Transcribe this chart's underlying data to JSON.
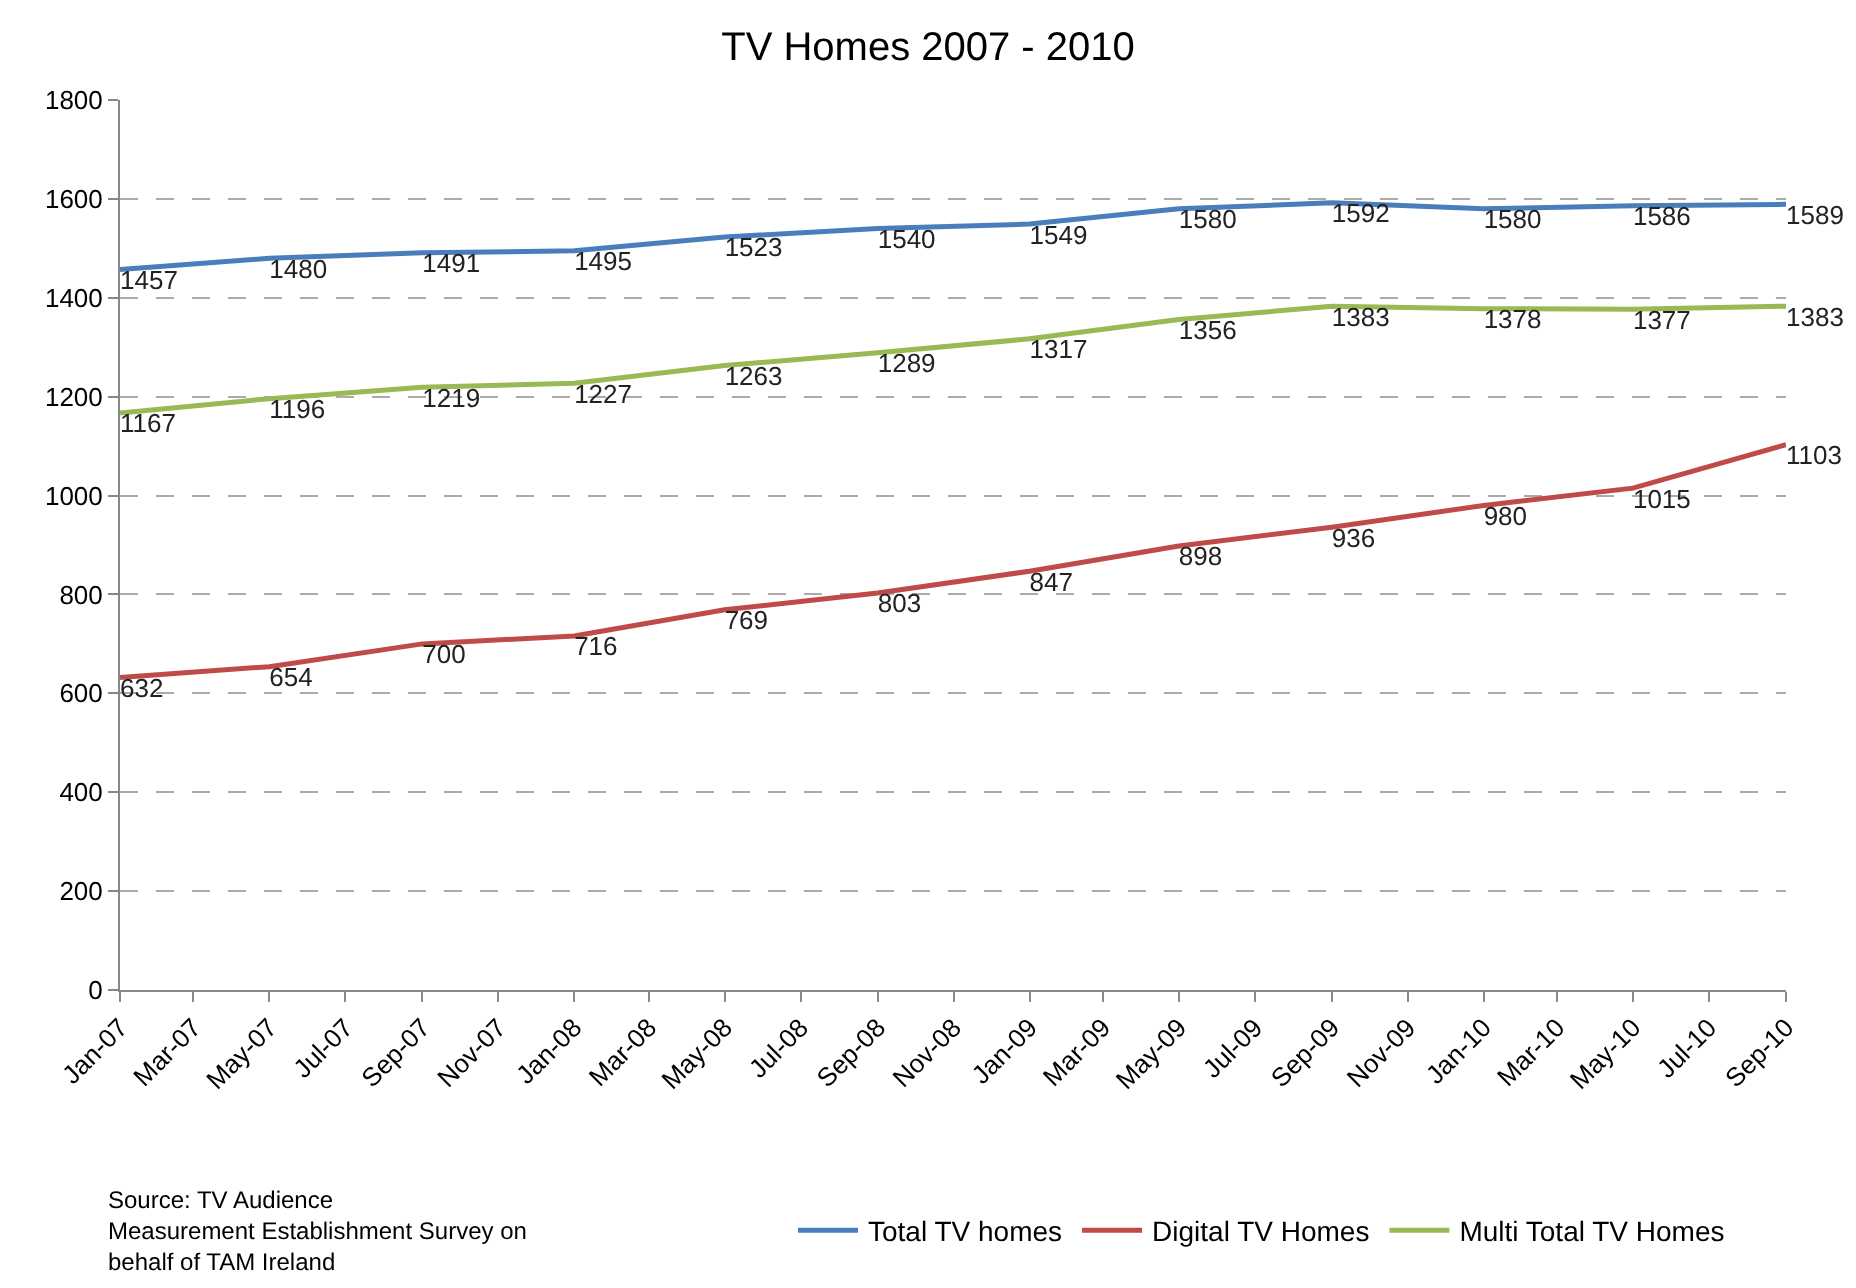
{
  "chart_data": {
    "type": "line",
    "title": "TV Homes 2007 - 2010",
    "x": [
      "2007-01",
      "2007-05",
      "2007-09",
      "2008-01",
      "2008-05",
      "2008-09",
      "2009-01",
      "2009-05",
      "2009-09",
      "2010-01",
      "2010-05",
      "2010-09"
    ],
    "series": [
      {
        "name": "Total TV homes",
        "color": "#4a7ebb",
        "values": [
          1457,
          1480,
          1491,
          1495,
          1523,
          1540,
          1549,
          1580,
          1592,
          1580,
          1586,
          1589
        ]
      },
      {
        "name": "Digital TV Homes",
        "color": "#be4b48",
        "values": [
          632,
          654,
          700,
          716,
          769,
          803,
          847,
          898,
          936,
          980,
          1015,
          1103
        ]
      },
      {
        "name": "Multi Total TV Homes",
        "color": "#98b954",
        "values": [
          1167,
          1196,
          1219,
          1227,
          1263,
          1289,
          1317,
          1356,
          1383,
          1378,
          1377,
          1383
        ]
      }
    ],
    "xlim": [
      "2007-01",
      "2010-09"
    ],
    "xticks": [
      {
        "value": "2007-01",
        "label": "Jan-07"
      },
      {
        "value": "2007-03",
        "label": "Mar-07"
      },
      {
        "value": "2007-05",
        "label": "May-07"
      },
      {
        "value": "2007-07",
        "label": "Jul-07"
      },
      {
        "value": "2007-09",
        "label": "Sep-07"
      },
      {
        "value": "2007-11",
        "label": "Nov-07"
      },
      {
        "value": "2008-01",
        "label": "Jan-08"
      },
      {
        "value": "2008-03",
        "label": "Mar-08"
      },
      {
        "value": "2008-05",
        "label": "May-08"
      },
      {
        "value": "2008-07",
        "label": "Jul-08"
      },
      {
        "value": "2008-09",
        "label": "Sep-08"
      },
      {
        "value": "2008-11",
        "label": "Nov-08"
      },
      {
        "value": "2009-01",
        "label": "Jan-09"
      },
      {
        "value": "2009-03",
        "label": "Mar-09"
      },
      {
        "value": "2009-05",
        "label": "May-09"
      },
      {
        "value": "2009-07",
        "label": "Jul-09"
      },
      {
        "value": "2009-09",
        "label": "Sep-09"
      },
      {
        "value": "2009-11",
        "label": "Nov-09"
      },
      {
        "value": "2010-01",
        "label": "Jan-10"
      },
      {
        "value": "2010-03",
        "label": "Mar-10"
      },
      {
        "value": "2010-05",
        "label": "May-10"
      },
      {
        "value": "2010-07",
        "label": "Jul-10"
      },
      {
        "value": "2010-09",
        "label": "Sep-10"
      }
    ],
    "ylim": [
      0,
      1800
    ],
    "yticks": [
      0,
      200,
      400,
      600,
      800,
      1000,
      1200,
      1400,
      1600,
      1800
    ],
    "grid": "y",
    "legend": "bottom",
    "marker": "none",
    "line_style": "solid",
    "data_labels": true,
    "annotations": [
      "Source: TV Audience Measurement Establishment Survey on behalf of TAM Ireland"
    ]
  }
}
